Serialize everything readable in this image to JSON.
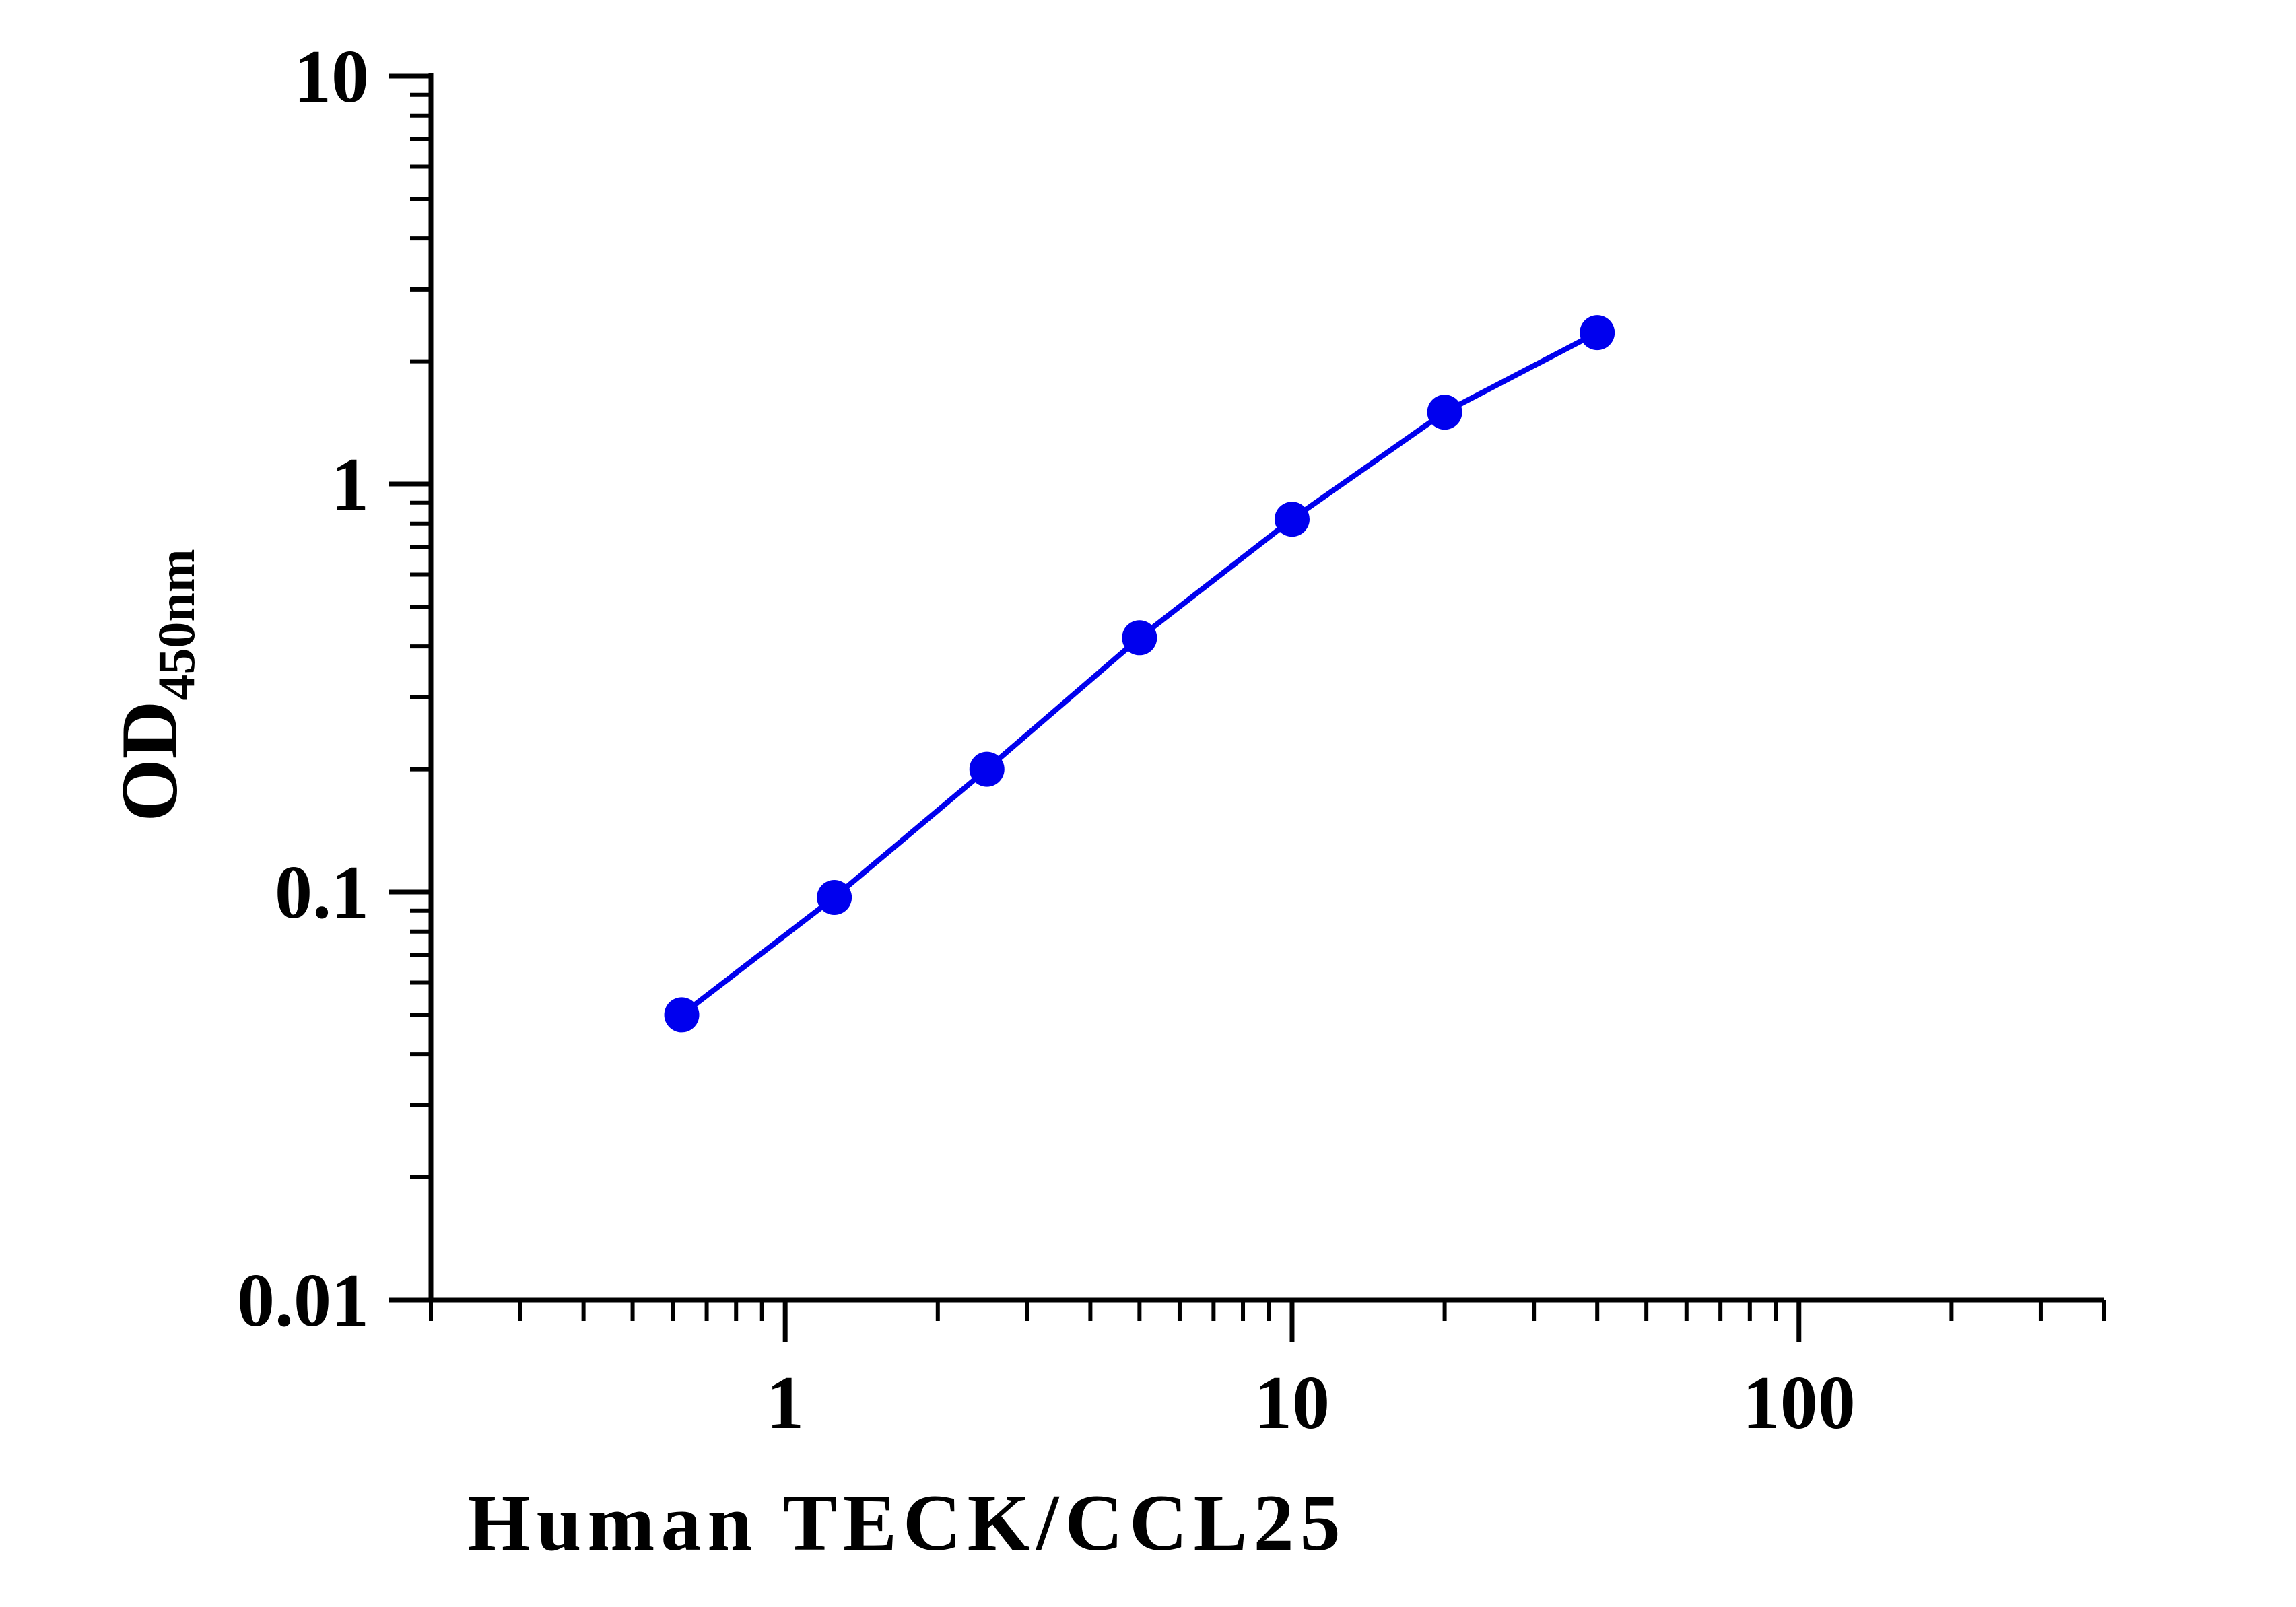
{
  "chart_data": {
    "type": "line",
    "xlabel": "Human TECK/CCL25",
    "ylabel": {
      "main": "OD",
      "sub": "450nm"
    },
    "x_scale": "log",
    "y_scale": "log",
    "xlim": [
      0.2,
      400
    ],
    "ylim": [
      0.01,
      10
    ],
    "x_ticks": [
      {
        "value": 1,
        "label": "1"
      },
      {
        "value": 10,
        "label": "10"
      },
      {
        "value": 100,
        "label": "100"
      }
    ],
    "y_ticks": [
      {
        "value": 0.01,
        "label": "0.01"
      },
      {
        "value": 0.1,
        "label": "0.1"
      },
      {
        "value": 1,
        "label": "1"
      },
      {
        "value": 10,
        "label": "10"
      }
    ],
    "grid": false,
    "legend": false,
    "colors": {
      "series": "#0000ee",
      "axis": "#000000"
    },
    "series": [
      {
        "x": [
          0.625,
          1.25,
          2.5,
          5,
          10,
          20,
          40
        ],
        "y": [
          0.05,
          0.097,
          0.2,
          0.42,
          0.82,
          1.5,
          2.35
        ],
        "marker": "circle"
      }
    ]
  }
}
